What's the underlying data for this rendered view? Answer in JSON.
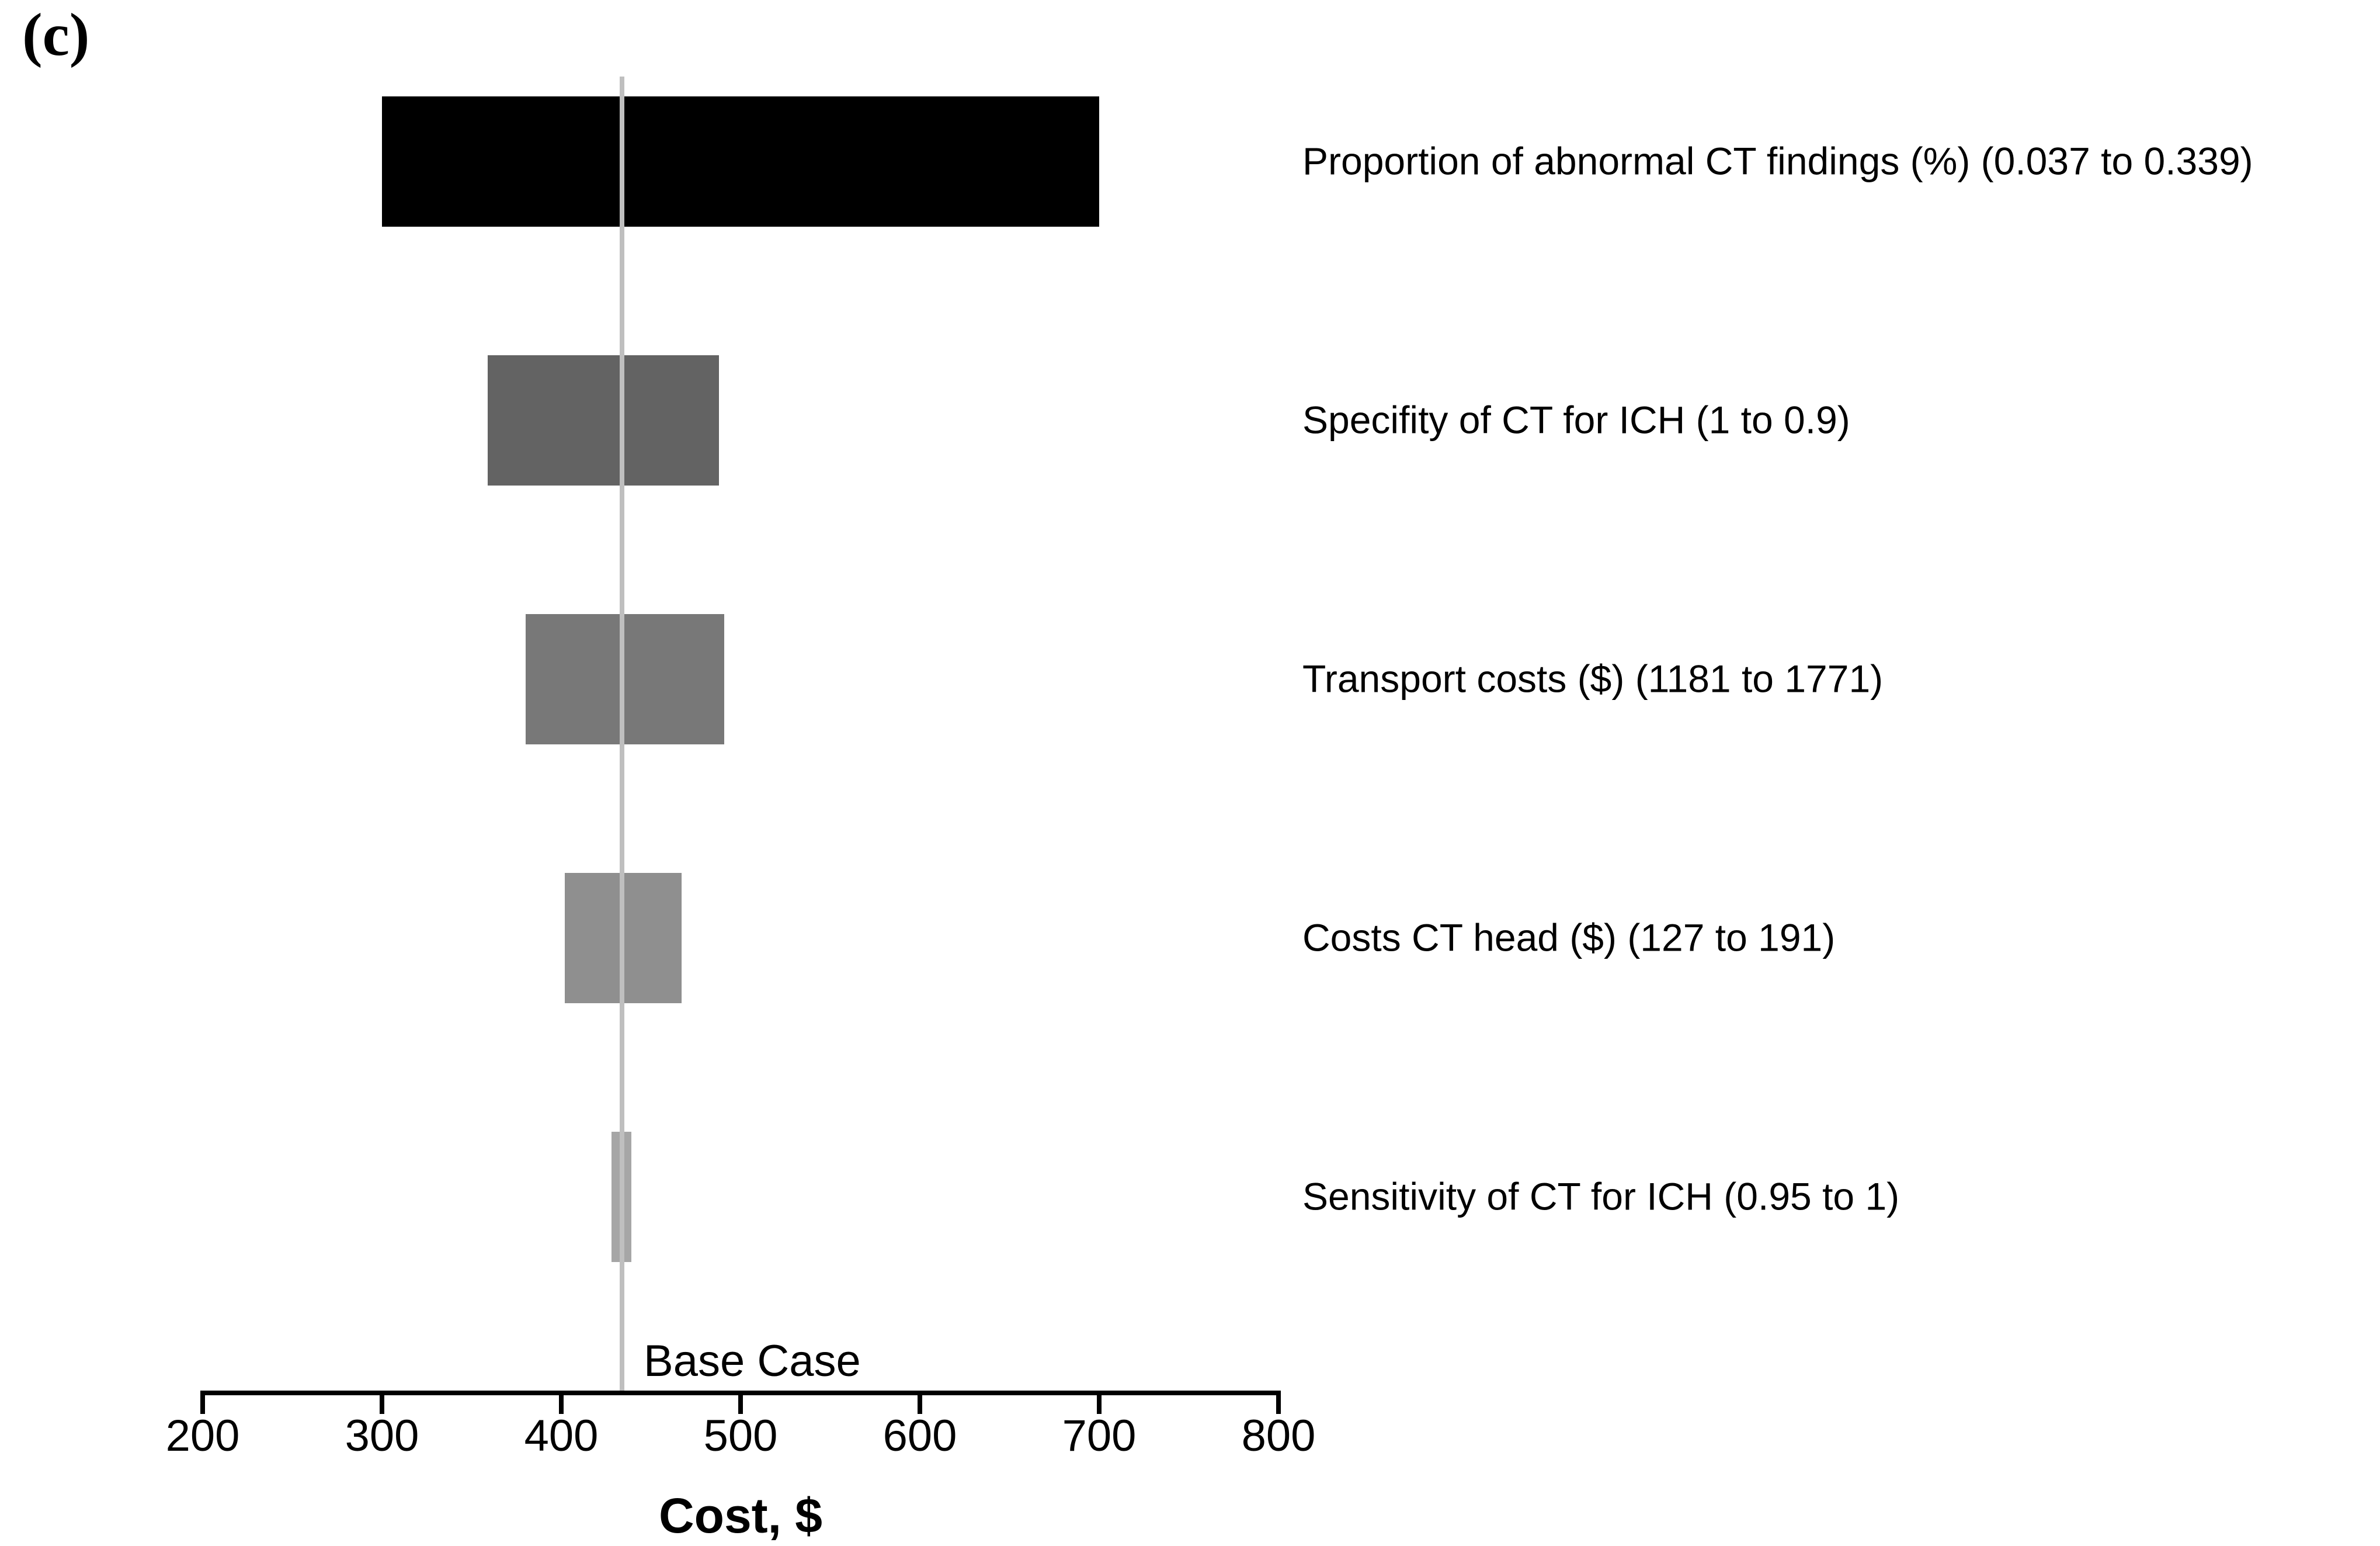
{
  "figure_label": "(c)",
  "chart_data": {
    "type": "bar",
    "variant": "tornado",
    "title": "",
    "xlabel": "Cost, $",
    "x_range": [
      200,
      800
    ],
    "x_ticks": [
      200,
      300,
      400,
      500,
      600,
      700,
      800
    ],
    "grid": false,
    "legend": "none",
    "base_case": {
      "label": "Base Case",
      "value": 434
    },
    "bars": [
      {
        "label": "Proportion of abnormal CT findings (%) (0.037 to 0.339)",
        "low": 300,
        "high": 700,
        "color": "#000000"
      },
      {
        "label": "Specifity of CT for ICH (1 to 0.9)",
        "low": 359,
        "high": 488,
        "color": "#636363"
      },
      {
        "label": "Transport costs ($) (1181 to 1771)",
        "low": 380,
        "high": 491,
        "color": "#787878"
      },
      {
        "label": "Costs CT head ($) (127 to 191)",
        "low": 402,
        "high": 467,
        "color": "#8f8f8f"
      },
      {
        "label": "Sensitivity of CT for ICH (0.95 to 1)",
        "low": 428,
        "high": 439,
        "color": "#a6a6a6"
      }
    ],
    "axis_color": "#000000",
    "base_line_color": "#bfbfbf",
    "background_color": "#ffffff"
  }
}
